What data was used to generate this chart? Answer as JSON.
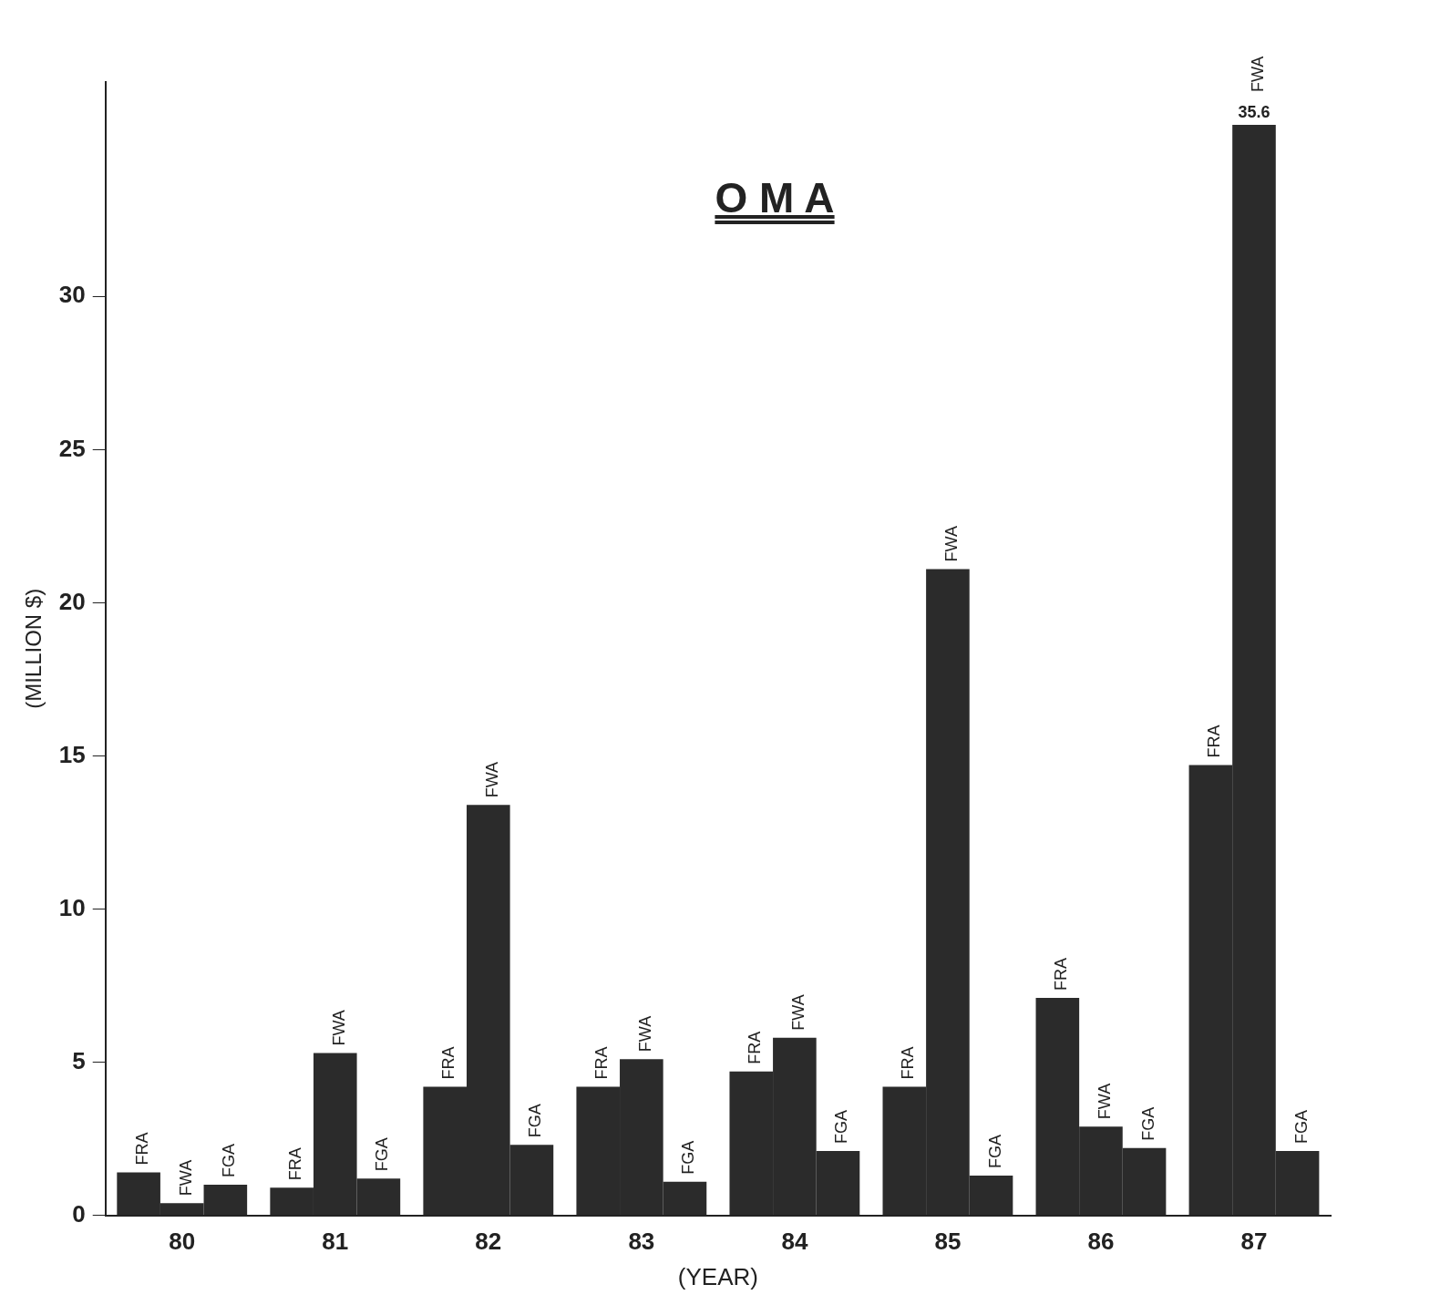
{
  "chart_data": {
    "type": "bar",
    "title": "O M A",
    "xlabel": "(YEAR)",
    "ylabel": "(MILLION $)",
    "categories": [
      "80",
      "81",
      "82",
      "83",
      "84",
      "85",
      "86",
      "87"
    ],
    "series": [
      {
        "name": "FRA",
        "color": "#2b2b2b",
        "values": [
          1.4,
          0.9,
          4.2,
          4.2,
          4.7,
          4.2,
          7.1,
          14.7
        ]
      },
      {
        "name": "FWA",
        "color": "#2b2b2b",
        "values": [
          0.4,
          5.3,
          13.4,
          5.1,
          5.8,
          21.1,
          2.9,
          35.6
        ],
        "value_labels": [
          null,
          null,
          null,
          null,
          null,
          null,
          null,
          "35.6"
        ]
      },
      {
        "name": "FGA",
        "color": "#2b2b2b",
        "values": [
          1.0,
          1.2,
          2.3,
          1.1,
          2.1,
          1.3,
          2.2,
          2.1
        ]
      }
    ],
    "ylim": [
      0,
      37
    ],
    "yticks": [
      0,
      5,
      10,
      15,
      20,
      25,
      30
    ],
    "grid": false,
    "legend": false
  }
}
